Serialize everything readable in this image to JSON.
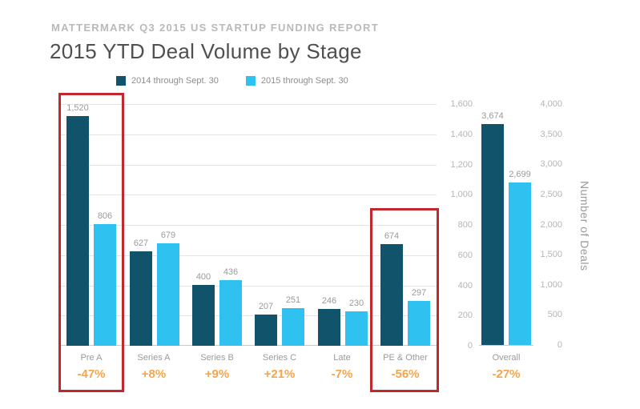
{
  "header": {
    "kicker": "MATTERMARK Q3 2015 US STARTUP FUNDING REPORT",
    "title": "2015 YTD Deal Volume by Stage"
  },
  "legend": [
    {
      "label": "2014 through Sept. 30",
      "color": "#11536b"
    },
    {
      "label": "2015 through Sept. 30",
      "color": "#2fc1ef"
    }
  ],
  "chart_data": {
    "type": "bar",
    "title": "2015 YTD Deal Volume by Stage",
    "ylabel": "Number of Deals",
    "legend_position": "top",
    "grid": true,
    "highlights": [
      "Pre A",
      "PE & Other"
    ],
    "main": {
      "categories": [
        "Pre A",
        "Series A",
        "Series B",
        "Series C",
        "Late",
        "PE & Other"
      ],
      "series": [
        {
          "id": "2014",
          "name": "2014 through Sept. 30",
          "color": "#11536b",
          "values": [
            1520,
            627,
            400,
            207,
            246,
            674
          ],
          "labels": [
            "1,520",
            "627",
            "400",
            "207",
            "246",
            "674"
          ]
        },
        {
          "id": "2015",
          "name": "2015 through Sept. 30",
          "color": "#2fc1ef",
          "values": [
            806,
            679,
            436,
            251,
            230,
            297
          ],
          "labels": [
            "806",
            "679",
            "436",
            "251",
            "230",
            "297"
          ]
        }
      ],
      "pct_change": [
        "-47%",
        "+8%",
        "+9%",
        "+21%",
        "-7%",
        "-56%"
      ],
      "ylim": [
        0,
        1600
      ],
      "yticks": [
        "1,600",
        "1,400",
        "1,200",
        "1,000",
        "800",
        "600",
        "400",
        "200",
        "0"
      ]
    },
    "overall": {
      "categories": [
        "Overall"
      ],
      "series": [
        {
          "id": "2014",
          "name": "2014 through Sept. 30",
          "color": "#11536b",
          "values": [
            3674
          ],
          "labels": [
            "3,674"
          ]
        },
        {
          "id": "2015",
          "name": "2015 through Sept. 30",
          "color": "#2fc1ef",
          "values": [
            2699
          ],
          "labels": [
            "2,699"
          ]
        }
      ],
      "pct_change": [
        "-27%"
      ],
      "ylim": [
        0,
        4000
      ],
      "yticks": [
        "4,000",
        "3,500",
        "3,000",
        "2,500",
        "2,000",
        "1,500",
        "1,000",
        "500",
        "0"
      ]
    }
  },
  "colors": {
    "series_2014": "#11536b",
    "series_2015": "#2fc1ef",
    "pct": "#f5a54b",
    "highlight_box": "#c1272d",
    "grid": "#e4e4e4",
    "axis_text": "#b5b5b5"
  }
}
